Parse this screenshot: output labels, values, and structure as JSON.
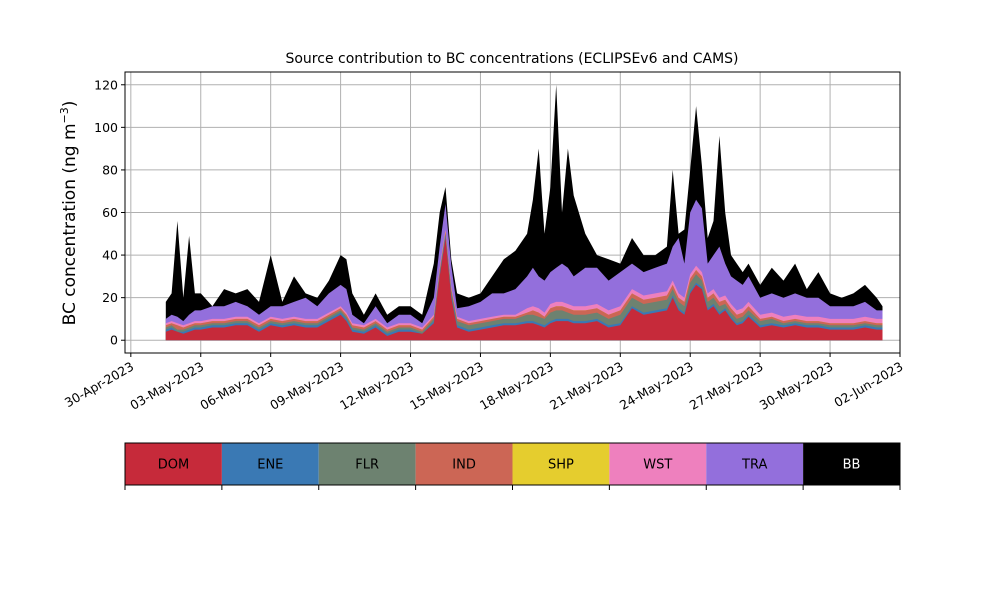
{
  "chart_data": {
    "type": "area",
    "title": "Source contribution to BC concentrations (ECLIPSEv6 and CAMS)",
    "ylabel": "BC concentration (ng m",
    "ylabel_exp": "−3",
    "ylabel_close": ")",
    "ylim": [
      -6,
      126
    ],
    "xlim": [
      "2023-04-29T18:00",
      "2023-06-02T00:00"
    ],
    "yticks": [
      0,
      20,
      40,
      60,
      80,
      100,
      120
    ],
    "xticks": [
      {
        "date": "2023-04-30",
        "label": "30-Apr-2023"
      },
      {
        "date": "2023-05-03",
        "label": "03-May-2023"
      },
      {
        "date": "2023-05-06",
        "label": "06-May-2023"
      },
      {
        "date": "2023-05-09",
        "label": "09-May-2023"
      },
      {
        "date": "2023-05-12",
        "label": "12-May-2023"
      },
      {
        "date": "2023-05-15",
        "label": "15-May-2023"
      },
      {
        "date": "2023-05-18",
        "label": "18-May-2023"
      },
      {
        "date": "2023-05-21",
        "label": "21-May-2023"
      },
      {
        "date": "2023-05-24",
        "label": "24-May-2023"
      },
      {
        "date": "2023-05-27",
        "label": "27-May-2023"
      },
      {
        "date": "2023-05-30",
        "label": "30-May-2023"
      },
      {
        "date": "2023-06-02",
        "label": "02-Jun-2023"
      }
    ],
    "grid": true,
    "stacking": "cumulative",
    "series_colors": {
      "DOM": "#c62a3a",
      "ENE": "#3a79b4",
      "FLR": "#6d8270",
      "IND": "#cc6655",
      "SHP": "#e5cd2e",
      "WST": "#ee80be",
      "TRA": "#936fdc",
      "BB": "#000000"
    },
    "cumulative_tops": {
      "x": [
        "2023-05-01T12:00",
        "2023-05-01T18:00",
        "2023-05-02T00:00",
        "2023-05-02T06:00",
        "2023-05-02T12:00",
        "2023-05-02T18:00",
        "2023-05-03T00:00",
        "2023-05-03T12:00",
        "2023-05-04T00:00",
        "2023-05-04T12:00",
        "2023-05-05T00:00",
        "2023-05-05T12:00",
        "2023-05-06T00:00",
        "2023-05-06T12:00",
        "2023-05-07T00:00",
        "2023-05-07T12:00",
        "2023-05-08T00:00",
        "2023-05-08T12:00",
        "2023-05-09T00:00",
        "2023-05-09T06:00",
        "2023-05-09T12:00",
        "2023-05-10T00:00",
        "2023-05-10T12:00",
        "2023-05-11T00:00",
        "2023-05-11T12:00",
        "2023-05-12T00:00",
        "2023-05-12T12:00",
        "2023-05-13T00:00",
        "2023-05-13T06:00",
        "2023-05-13T12:00",
        "2023-05-13T18:00",
        "2023-05-14T00:00",
        "2023-05-14T12:00",
        "2023-05-15T00:00",
        "2023-05-15T12:00",
        "2023-05-16T00:00",
        "2023-05-16T12:00",
        "2023-05-17T00:00",
        "2023-05-17T06:00",
        "2023-05-17T12:00",
        "2023-05-17T18:00",
        "2023-05-18T00:00",
        "2023-05-18T06:00",
        "2023-05-18T12:00",
        "2023-05-18T18:00",
        "2023-05-19T00:00",
        "2023-05-19T12:00",
        "2023-05-20T00:00",
        "2023-05-20T12:00",
        "2023-05-21T00:00",
        "2023-05-21T12:00",
        "2023-05-22T00:00",
        "2023-05-22T12:00",
        "2023-05-23T00:00",
        "2023-05-23T06:00",
        "2023-05-23T12:00",
        "2023-05-23T18:00",
        "2023-05-24T00:00",
        "2023-05-24T06:00",
        "2023-05-24T12:00",
        "2023-05-24T18:00",
        "2023-05-25T00:00",
        "2023-05-25T06:00",
        "2023-05-25T12:00",
        "2023-05-25T18:00",
        "2023-05-26T00:00",
        "2023-05-26T06:00",
        "2023-05-26T12:00",
        "2023-05-27T00:00",
        "2023-05-27T12:00",
        "2023-05-28T00:00",
        "2023-05-28T12:00",
        "2023-05-29T00:00",
        "2023-05-29T12:00",
        "2023-05-30T00:00",
        "2023-05-30T12:00",
        "2023-05-31T00:00",
        "2023-05-31T12:00",
        "2023-06-01T00:00",
        "2023-06-01T06:00"
      ],
      "DOM": [
        4,
        5,
        4,
        3,
        4,
        5,
        5,
        6,
        6,
        7,
        7,
        4,
        7,
        6,
        7,
        6,
        6,
        9,
        12,
        9,
        4,
        3,
        6,
        2,
        4,
        4,
        3,
        8,
        30,
        48,
        20,
        6,
        4,
        5,
        6,
        7,
        7,
        8,
        8,
        7,
        6,
        8,
        9,
        9,
        9,
        8,
        8,
        9,
        6,
        7,
        15,
        12,
        13,
        14,
        20,
        14,
        12,
        22,
        26,
        24,
        14,
        16,
        12,
        14,
        10,
        7,
        8,
        11,
        6,
        7,
        6,
        7,
        6,
        6,
        5,
        5,
        5,
        6,
        5,
        5
      ],
      "ENE": [
        5,
        6,
        4,
        4,
        5,
        6,
        6,
        7,
        7,
        8,
        8,
        5,
        8,
        7,
        8,
        7,
        7,
        10,
        13,
        10,
        5,
        4,
        7,
        3,
        5,
        5,
        3,
        9,
        31,
        49,
        21,
        7,
        5,
        6,
        7,
        8,
        8,
        9,
        9,
        8,
        7,
        9,
        10,
        10,
        10,
        9,
        9,
        10,
        7,
        8,
        16,
        13,
        14,
        15,
        21,
        15,
        13,
        23,
        27,
        25,
        15,
        17,
        13,
        15,
        11,
        8,
        9,
        12,
        7,
        8,
        7,
        8,
        7,
        7,
        6,
        6,
        6,
        7,
        6,
        6
      ],
      "FLR": [
        6,
        7,
        5,
        5,
        6,
        7,
        7,
        8,
        8,
        9,
        9,
        6,
        9,
        8,
        9,
        8,
        8,
        11,
        14,
        11,
        6,
        5,
        8,
        4,
        6,
        6,
        4,
        10,
        32,
        50,
        23,
        9,
        7,
        8,
        9,
        10,
        10,
        12,
        12,
        11,
        10,
        13,
        14,
        14,
        13,
        12,
        12,
        13,
        10,
        12,
        20,
        17,
        18,
        19,
        24,
        18,
        16,
        27,
        31,
        28,
        18,
        20,
        16,
        17,
        13,
        10,
        11,
        14,
        9,
        10,
        8,
        9,
        8,
        8,
        7,
        7,
        7,
        8,
        7,
        7
      ],
      "IND": [
        7,
        8,
        7,
        6,
        7,
        8,
        8,
        9,
        9,
        10,
        10,
        7,
        10,
        9,
        10,
        9,
        9,
        12,
        15,
        12,
        7,
        6,
        9,
        5,
        7,
        7,
        5,
        11,
        33,
        51,
        24,
        10,
        8,
        9,
        10,
        11,
        11,
        13,
        14,
        13,
        11,
        15,
        16,
        16,
        15,
        14,
        14,
        15,
        12,
        14,
        22,
        19,
        20,
        21,
        26,
        20,
        18,
        29,
        33,
        30,
        20,
        22,
        18,
        19,
        15,
        12,
        13,
        16,
        10,
        11,
        9,
        10,
        9,
        9,
        8,
        8,
        8,
        9,
        8,
        8
      ],
      "SHP": [
        7,
        8,
        7,
        6,
        7,
        8,
        8,
        9,
        9,
        10,
        10,
        7,
        10,
        9,
        10,
        9,
        9,
        12,
        15,
        12,
        7,
        6,
        9,
        5,
        7,
        7,
        5,
        11,
        33,
        51,
        24,
        10,
        8,
        9,
        10,
        11,
        11,
        13,
        14,
        13,
        11,
        15,
        16,
        16,
        15,
        14,
        14,
        15,
        12,
        14,
        22,
        19,
        20,
        21,
        26,
        20,
        18,
        29,
        33,
        30,
        20,
        22,
        18,
        19,
        15,
        12,
        13,
        16,
        10,
        11,
        9,
        10,
        9,
        9,
        8,
        8,
        8,
        9,
        8,
        8
      ],
      "WST": [
        8,
        9,
        8,
        7,
        8,
        9,
        9,
        10,
        10,
        11,
        11,
        8,
        11,
        10,
        11,
        10,
        10,
        13,
        16,
        13,
        8,
        7,
        10,
        6,
        8,
        8,
        6,
        12,
        34,
        52,
        25,
        11,
        9,
        10,
        11,
        12,
        12,
        15,
        16,
        15,
        13,
        17,
        18,
        18,
        17,
        16,
        16,
        17,
        14,
        16,
        24,
        21,
        22,
        23,
        28,
        22,
        20,
        31,
        35,
        32,
        22,
        24,
        20,
        21,
        17,
        14,
        15,
        18,
        12,
        13,
        11,
        12,
        11,
        11,
        10,
        10,
        10,
        11,
        10,
        10
      ],
      "TRA": [
        10,
        12,
        11,
        9,
        12,
        14,
        14,
        16,
        16,
        18,
        16,
        12,
        16,
        16,
        18,
        20,
        16,
        22,
        26,
        24,
        12,
        8,
        16,
        8,
        12,
        12,
        8,
        20,
        44,
        64,
        35,
        15,
        16,
        18,
        22,
        22,
        24,
        30,
        34,
        30,
        28,
        32,
        34,
        36,
        34,
        30,
        34,
        34,
        28,
        32,
        36,
        32,
        34,
        36,
        44,
        48,
        36,
        60,
        66,
        62,
        36,
        40,
        44,
        36,
        30,
        28,
        26,
        30,
        20,
        22,
        20,
        22,
        20,
        20,
        16,
        16,
        16,
        18,
        14,
        14
      ],
      "BB": [
        18,
        22,
        56,
        20,
        49,
        22,
        22,
        16,
        24,
        22,
        24,
        18,
        40,
        18,
        30,
        22,
        20,
        28,
        40,
        38,
        22,
        12,
        22,
        12,
        16,
        16,
        12,
        36,
        60,
        72,
        38,
        22,
        20,
        22,
        30,
        38,
        42,
        50,
        66,
        90,
        50,
        72,
        120,
        60,
        90,
        68,
        50,
        40,
        38,
        36,
        48,
        40,
        40,
        44,
        80,
        50,
        52,
        80,
        110,
        82,
        48,
        56,
        96,
        60,
        40,
        36,
        32,
        36,
        26,
        34,
        28,
        36,
        24,
        32,
        22,
        20,
        22,
        26,
        20,
        16
      ]
    },
    "legend": {
      "placement": "below",
      "entries": [
        "DOM",
        "ENE",
        "FLR",
        "IND",
        "SHP",
        "WST",
        "TRA",
        "BB"
      ],
      "text_colors": {
        "DOM": "#000",
        "ENE": "#000",
        "FLR": "#000",
        "IND": "#000",
        "SHP": "#000",
        "WST": "#000",
        "TRA": "#000",
        "BB": "#ffffff"
      }
    }
  }
}
